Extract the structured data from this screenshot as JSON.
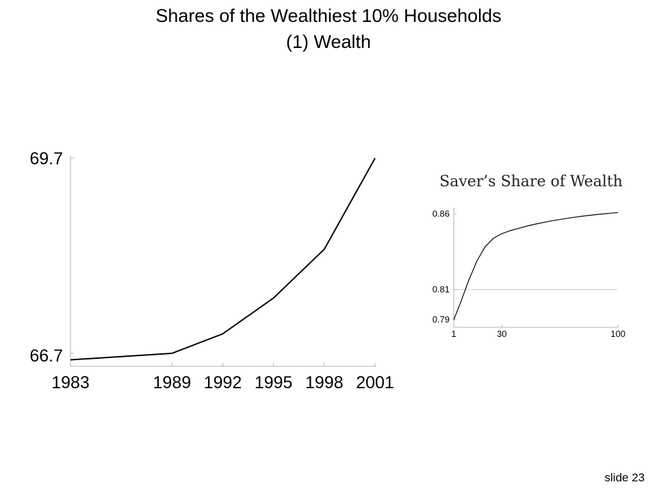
{
  "slide": {
    "title_line1": "Shares of the Wealthiest 10% Households",
    "title_line2": "(1) Wealth",
    "slide_label": "slide 23"
  },
  "chart_data": [
    {
      "type": "line",
      "title": "",
      "x": [
        1983,
        1989,
        1992,
        1995,
        1998,
        2001
      ],
      "series": [
        {
          "values": [
            66.6,
            66.7,
            67.0,
            67.55,
            68.3,
            69.7
          ]
        }
      ],
      "x_tick_labels": [
        "1983",
        "1989",
        "1992",
        "1995",
        "1998",
        "2001"
      ],
      "y_tick_labels": [
        "69.7",
        "66.7"
      ],
      "xlim": [
        1983,
        2001
      ],
      "ylim": [
        66.5,
        69.7
      ],
      "line_color": "#000000",
      "grid": false
    },
    {
      "type": "line",
      "title": "Saver’s Share of Wealth",
      "x": [
        1,
        5,
        10,
        15,
        20,
        25,
        30,
        35,
        40,
        45,
        50,
        60,
        70,
        80,
        90,
        100
      ],
      "series": [
        {
          "values": [
            0.79,
            0.801,
            0.816,
            0.829,
            0.8385,
            0.844,
            0.847,
            0.849,
            0.8505,
            0.852,
            0.8533,
            0.8555,
            0.8573,
            0.8588,
            0.86,
            0.861
          ]
        }
      ],
      "reference_line": 0.81,
      "x_tick_labels": [
        "1",
        "30",
        "100"
      ],
      "y_tick_labels": [
        "0.86",
        "0.81",
        "0.79"
      ],
      "x_ticks": [
        1,
        30,
        100
      ],
      "y_ticks": [
        0.86,
        0.81,
        0.79
      ],
      "xlim": [
        1,
        100
      ],
      "ylim": [
        0.785,
        0.863
      ],
      "line_color": "#000000",
      "reference_line_color": "#999999",
      "grid": false
    }
  ]
}
